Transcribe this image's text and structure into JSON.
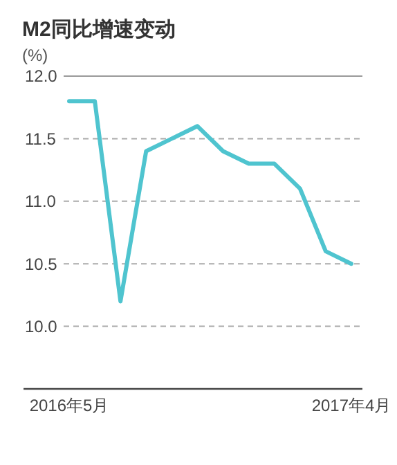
{
  "chart_data": {
    "type": "line",
    "title": "M2同比增速变动",
    "ylabel": "(%)",
    "categories": [
      "2016年5月",
      null,
      null,
      null,
      null,
      null,
      null,
      null,
      null,
      null,
      null,
      "2017年4月"
    ],
    "series": [
      {
        "color": "#4fc4cf",
        "values": [
          11.8,
          11.8,
          10.2,
          11.4,
          11.5,
          11.6,
          11.4,
          11.3,
          11.3,
          11.1,
          10.6,
          10.5
        ]
      }
    ],
    "ylim": [
      9.5,
      12.0
    ],
    "yticks": [
      {
        "value": 10.0,
        "label": "10.0"
      },
      {
        "value": 10.5,
        "label": "10.5"
      },
      {
        "value": 11.0,
        "label": "11.0"
      },
      {
        "value": 11.5,
        "label": "11.5"
      },
      {
        "value": 12.0,
        "label": "12.0"
      }
    ],
    "grid": "y",
    "marker": "none",
    "line_style": "solid"
  }
}
